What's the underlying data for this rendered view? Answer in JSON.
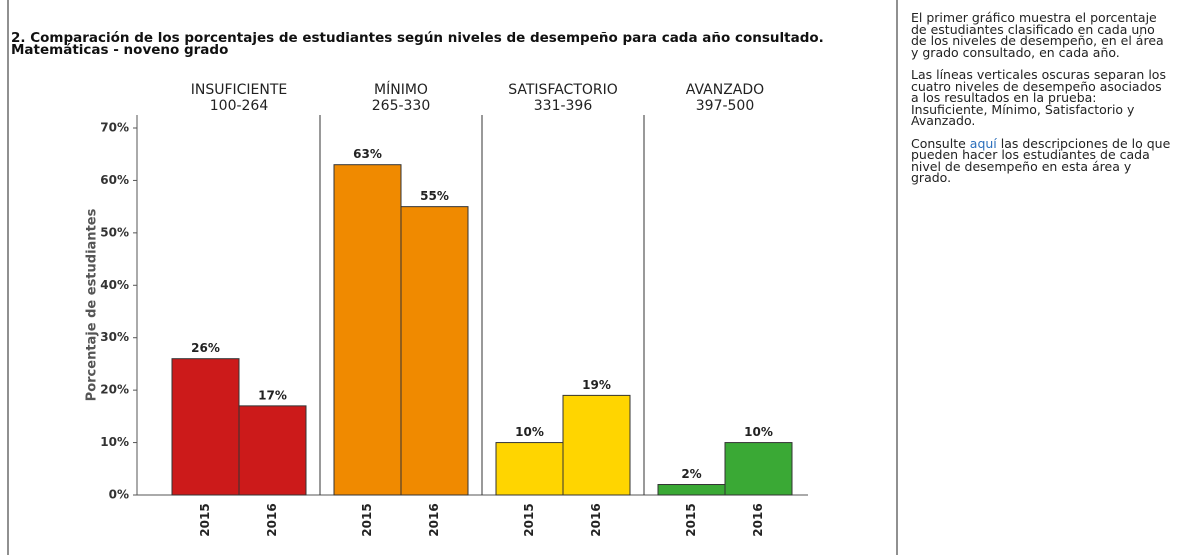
{
  "chart_data": {
    "type": "bar",
    "title": "2. Comparación de los porcentajes de estudiantes según niveles de desempeño para cada año consultado.",
    "subtitle": "Matemáticas - noveno grado",
    "y_label": "Porcentaje de estudiantes",
    "ylim": [
      0,
      70
    ],
    "yticks": [
      {
        "value": 0,
        "label": "0%"
      },
      {
        "value": 10,
        "label": "10%"
      },
      {
        "value": 20,
        "label": "20%"
      },
      {
        "value": 30,
        "label": "30%"
      },
      {
        "value": 40,
        "label": "40%"
      },
      {
        "value": 50,
        "label": "50%"
      },
      {
        "value": 60,
        "label": "60%"
      },
      {
        "value": 70,
        "label": "70%"
      }
    ],
    "groups": [
      {
        "name": "INSUFICIENTE",
        "range": "100-264",
        "color": "#cc1a1a",
        "categories": [
          "2015",
          "2016"
        ],
        "values": [
          26,
          17
        ],
        "value_labels": [
          "26%",
          "17%"
        ]
      },
      {
        "name": "MÍNIMO",
        "range": "265-330",
        "color": "#f08a00",
        "categories": [
          "2015",
          "2016"
        ],
        "values": [
          63,
          55
        ],
        "value_labels": [
          "63%",
          "55%"
        ]
      },
      {
        "name": "SATISFACTORIO",
        "range": "331-396",
        "color": "#ffd500",
        "categories": [
          "2015",
          "2016"
        ],
        "values": [
          10,
          19
        ],
        "value_labels": [
          "10%",
          "19%"
        ]
      },
      {
        "name": "AVANZADO",
        "range": "397-500",
        "color": "#3aa935",
        "categories": [
          "2015",
          "2016"
        ],
        "values": [
          2,
          10
        ],
        "value_labels": [
          "2%",
          "10%"
        ]
      }
    ]
  },
  "sidebar": {
    "p1": "El primer gráfico muestra el porcentaje de estudiantes clasificado en cada uno de los niveles de desempeño, en el área y grado consultado, en cada año.",
    "p2": "Las líneas verticales oscuras separan los cuatro niveles de desempeño asociados a los resultados en la prueba: Insuficiente, Mínimo, Satisfactorio y Avanzado.",
    "p3_before": "Consulte ",
    "p3_link": "aquí",
    "p3_after": " las descripciones de lo que pueden hacer los estudiantes de cada nivel de desempeño en esta área y grado."
  }
}
